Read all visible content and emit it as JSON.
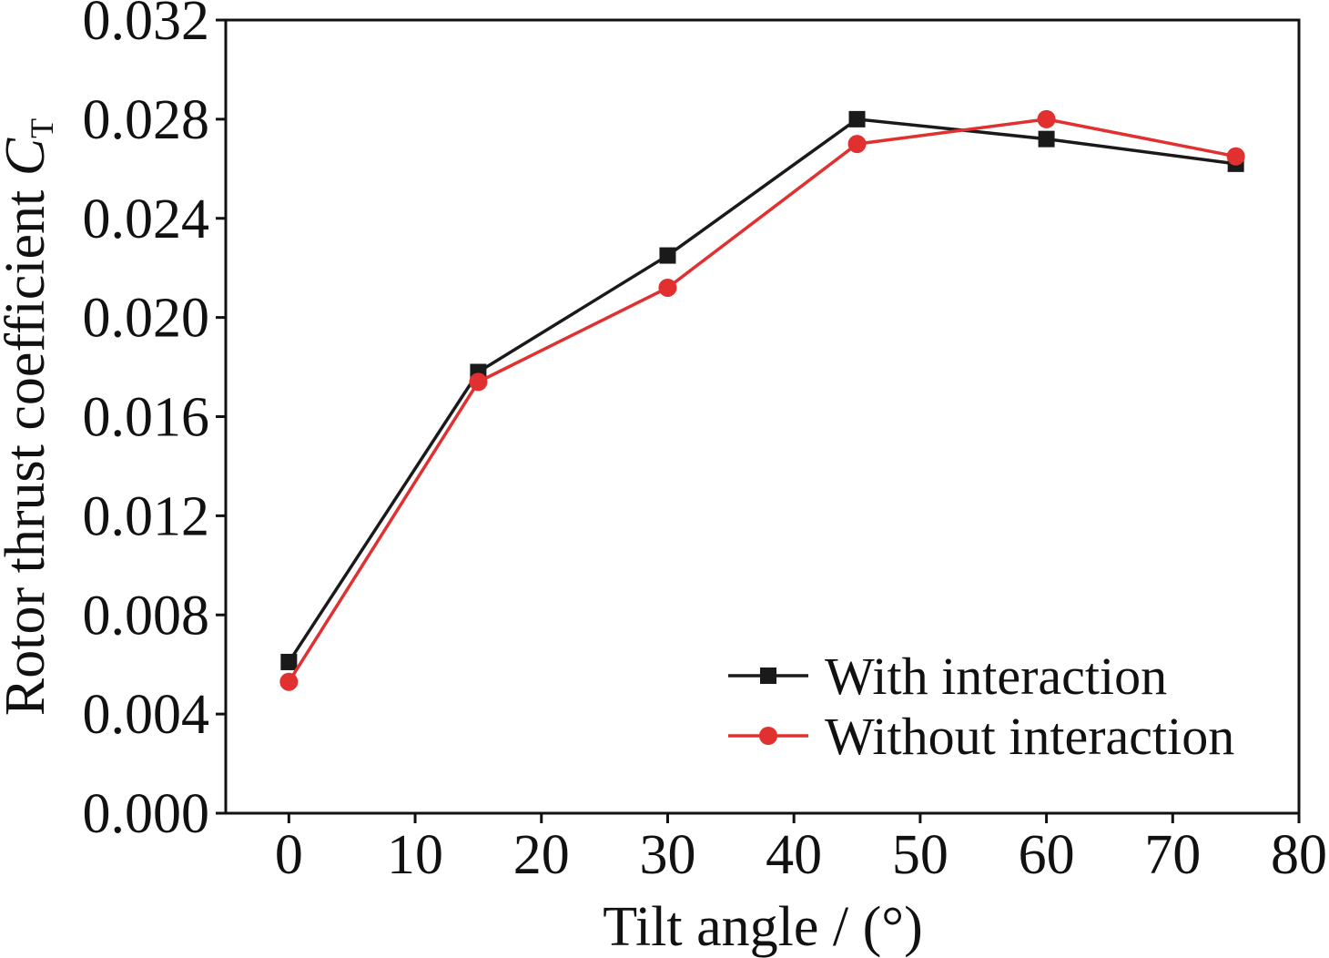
{
  "chart_data": {
    "type": "line",
    "title": "",
    "xlabel": "Tilt angle / (°)",
    "ylabel_main": "Rotor thrust coefficient ",
    "ylabel_symbol": "C",
    "ylabel_subscript": "T",
    "xlim": [
      -5,
      80
    ],
    "ylim": [
      0.0,
      0.032
    ],
    "xticks": [
      0,
      10,
      20,
      30,
      40,
      50,
      60,
      70,
      80
    ],
    "yticks": [
      "0.000",
      "0.004",
      "0.008",
      "0.012",
      "0.016",
      "0.020",
      "0.024",
      "0.028",
      "0.032"
    ],
    "grid": false,
    "legend_position": "bottom-right",
    "x": [
      0,
      15,
      30,
      45,
      60,
      75
    ],
    "series": [
      {
        "name": "With interaction",
        "marker": "square",
        "color": "#1a1a1a",
        "values": [
          0.0061,
          0.0178,
          0.0225,
          0.028,
          0.0272,
          0.0262
        ]
      },
      {
        "name": "Without interaction",
        "marker": "circle",
        "color": "#e03030",
        "values": [
          0.0053,
          0.0174,
          0.0212,
          0.027,
          0.028,
          0.0265
        ]
      }
    ]
  }
}
